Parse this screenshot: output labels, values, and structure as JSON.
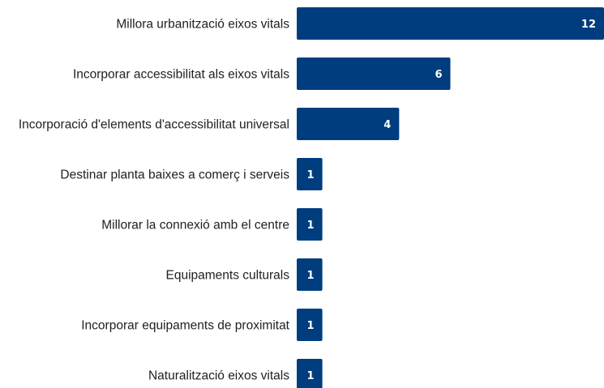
{
  "chart_data": {
    "type": "bar",
    "orientation": "horizontal",
    "categories": [
      "Millora urbanització eixos vitals",
      "Incorporar accessibilitat als eixos vitals",
      "Incorporació d'elements d'accessibilitat universal",
      "Destinar planta baixes a comerç i serveis",
      "Millorar la connexió amb el centre",
      "Equipaments culturals",
      "Incorporar equipaments de proximitat",
      "Naturalització eixos vitals"
    ],
    "values": [
      12,
      6,
      4,
      1,
      1,
      1,
      1,
      1
    ],
    "xlim": [
      0,
      12
    ],
    "title": "",
    "xlabel": "",
    "ylabel": "",
    "grid": false,
    "legend": "none",
    "bar_color": "#003d7e",
    "value_label_color": "#ffffff",
    "category_label_color": "#1f1f1f"
  }
}
